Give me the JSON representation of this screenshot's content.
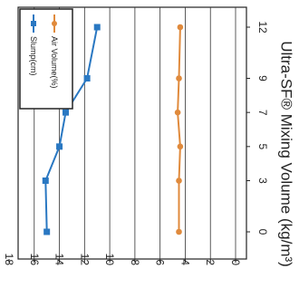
{
  "chart_data": {
    "type": "line",
    "orientation": "rotated-90-clockwise",
    "title": "",
    "xlabel": "Ultra-SF® Mixing Volume (kg/m³)",
    "ylabel": "",
    "x": [
      0,
      3,
      5,
      7,
      9,
      12
    ],
    "x_tick_labels": [
      "0",
      "3",
      "5",
      "7",
      "9",
      "12"
    ],
    "ylim": [
      0,
      18
    ],
    "y_ticks": [
      0,
      2,
      4,
      6,
      8,
      10,
      12,
      14,
      16,
      18
    ],
    "y_tick_labels": [
      "0",
      "2",
      "4",
      "6",
      "8",
      "10",
      "12",
      "14",
      "16",
      "18"
    ],
    "grid": "horizontal value gridlines",
    "legend_position": "top-left",
    "series": [
      {
        "name": "Slump(cm)",
        "marker": "square",
        "color": "#2a78c2",
        "values": [
          15.0,
          15.1,
          14.0,
          13.5,
          11.8,
          11.0
        ]
      },
      {
        "name": "Air Volume(%)",
        "marker": "circle",
        "color": "#e08a3c",
        "values": [
          4.5,
          4.5,
          4.4,
          4.6,
          4.5,
          4.4
        ]
      }
    ]
  }
}
